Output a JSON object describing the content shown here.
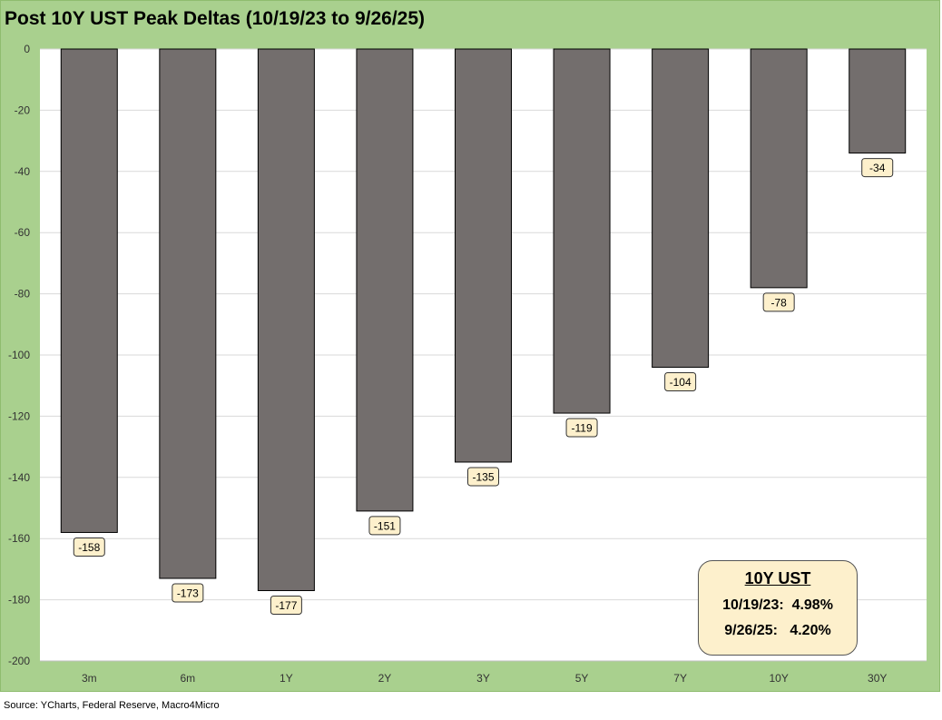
{
  "chart_data": {
    "type": "bar",
    "title": "Post 10Y UST Peak Deltas (10/19/23 to 9/26/25)",
    "categories": [
      "3m",
      "6m",
      "1Y",
      "2Y",
      "3Y",
      "5Y",
      "7Y",
      "10Y",
      "30Y"
    ],
    "values": [
      -158,
      -173,
      -177,
      -151,
      -135,
      -119,
      -104,
      -78,
      -34
    ],
    "data_labels": [
      "-158",
      "-173",
      "-177",
      "-151",
      "-135",
      "-119",
      "-104",
      "-78",
      "-34"
    ],
    "ylim": [
      -200,
      0
    ],
    "yticks": [
      0,
      -20,
      -40,
      -60,
      -80,
      -100,
      -120,
      -140,
      -160,
      -180,
      -200
    ],
    "grid": true,
    "legend": "none",
    "colors": {
      "bar": "#736e6d",
      "frame_background": "#a9d08e",
      "plot_background": "#ffffff",
      "label_fill": "#fdf0cc"
    }
  },
  "annotation": {
    "title": "10Y UST",
    "lines": [
      "10/19/23:  4.98%",
      "9/26/25:   4.20%"
    ]
  },
  "source": "Source: YCharts, Federal Reserve, Macro4Micro"
}
